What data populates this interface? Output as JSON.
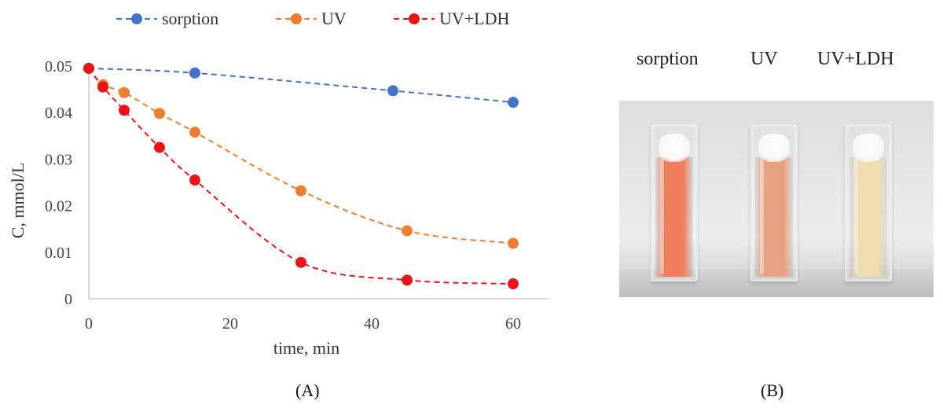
{
  "chart_data": {
    "type": "line",
    "xlabel": "time, min",
    "ylabel": "C, mmol/L",
    "xlim": [
      0,
      60
    ],
    "ylim": [
      0,
      0.05
    ],
    "xticks": [
      0,
      20,
      40,
      60
    ],
    "yticks": [
      0,
      0.01,
      0.02,
      0.03,
      0.04,
      0.05
    ],
    "ytick_labels": [
      "0",
      "0.01",
      "0.02",
      "0.03",
      "0.04",
      "0.05"
    ],
    "xtick_labels": [
      "0",
      "20",
      "40",
      "60"
    ],
    "grid": false,
    "legend_position": "top",
    "series": [
      {
        "name": "sorption",
        "color": "#4472C4",
        "x": [
          0,
          15,
          43,
          60
        ],
        "y": [
          0.0495,
          0.0485,
          0.0447,
          0.0422
        ]
      },
      {
        "name": "UV",
        "color": "#ED7D31",
        "x": [
          0,
          2,
          5,
          10,
          15,
          30,
          45,
          60
        ],
        "y": [
          0.0495,
          0.046,
          0.0443,
          0.0398,
          0.0358,
          0.0232,
          0.0146,
          0.0119
        ]
      },
      {
        "name": "UV+LDH",
        "color": "#E8141B",
        "x": [
          0,
          2,
          5,
          10,
          15,
          30,
          45,
          60
        ],
        "y": [
          0.0495,
          0.0455,
          0.0405,
          0.0325,
          0.0255,
          0.0078,
          0.004,
          0.0032
        ]
      }
    ]
  },
  "captions": {
    "a": "(A)",
    "b": "(B)"
  },
  "photo": {
    "labels": [
      "sorption",
      "UV",
      "UV+LDH"
    ],
    "cuvette_colors": [
      "#EE7E5E",
      "#E8A080",
      "#EFDDB0"
    ]
  }
}
